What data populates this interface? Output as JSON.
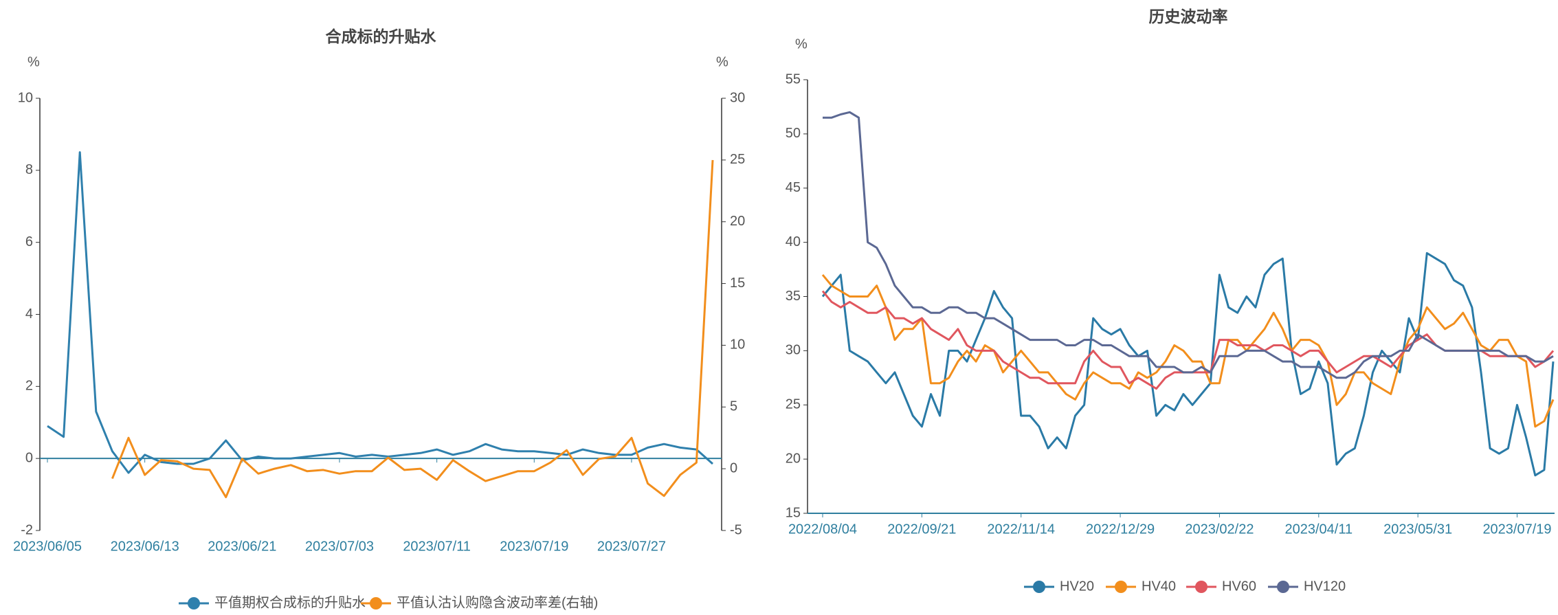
{
  "chart_data": [
    {
      "type": "line",
      "title": "合成标的升贴水",
      "ylabel": "%",
      "y2label": "%",
      "categories": [
        "2023/06/05",
        null,
        null,
        null,
        null,
        null,
        "2023/06/13",
        null,
        null,
        null,
        null,
        null,
        "2023/06/21",
        null,
        null,
        null,
        null,
        null,
        "2023/07/03",
        null,
        null,
        null,
        null,
        null,
        "2023/07/11",
        null,
        null,
        null,
        null,
        null,
        "2023/07/19",
        null,
        null,
        null,
        null,
        null,
        "2023/07/27",
        null,
        null,
        null,
        null,
        null
      ],
      "ylim": [
        -2,
        10
      ],
      "yticks": [
        -2,
        0,
        2,
        4,
        6,
        8,
        10
      ],
      "y2lim": [
        -5,
        30
      ],
      "y2ticks": [
        -5,
        0,
        5,
        10,
        15,
        20,
        25,
        30
      ],
      "series": [
        {
          "name": "平值期权合成标的升贴水",
          "color": "#2f80ad",
          "values": [
            0.9,
            0.6,
            8.5,
            1.3,
            0.2,
            -0.4,
            0.1,
            -0.1,
            -0.15,
            -0.15,
            0.0,
            0.5,
            -0.05,
            0.05,
            0.0,
            0.0,
            0.05,
            0.1,
            0.15,
            0.05,
            0.1,
            0.05,
            0.1,
            0.15,
            0.25,
            0.1,
            0.2,
            0.4,
            0.25,
            0.2,
            0.2,
            0.15,
            0.1,
            0.25,
            0.15,
            0.1,
            0.1,
            0.3,
            0.4,
            0.3,
            0.25,
            -0.15
          ]
        },
        {
          "name": "平值认沽认购隐含波动率差(右轴)",
          "color": "#f28e1c",
          "axis": "y2",
          "values": [
            null,
            null,
            null,
            null,
            -0.8,
            2.5,
            -0.5,
            0.7,
            0.6,
            0.0,
            -0.1,
            -2.3,
            0.8,
            -0.4,
            0.0,
            0.3,
            -0.2,
            -0.1,
            -0.4,
            -0.2,
            -0.2,
            0.9,
            -0.1,
            0.0,
            -0.9,
            0.7,
            -0.2,
            -1.0,
            -0.6,
            -0.2,
            -0.2,
            0.5,
            1.5,
            -0.5,
            0.8,
            1.0,
            2.5,
            -1.2,
            -2.2,
            -0.5,
            0.5,
            25.0
          ]
        }
      ]
    },
    {
      "type": "line",
      "title": "历史波动率",
      "ylabel": "%",
      "categories": [
        "2022/08/04",
        null,
        null,
        null,
        null,
        null,
        null,
        null,
        null,
        null,
        null,
        "2022/09/21",
        null,
        null,
        null,
        null,
        null,
        null,
        null,
        null,
        null,
        null,
        "2022/11/14",
        null,
        null,
        null,
        null,
        null,
        null,
        null,
        null,
        null,
        null,
        "2022/12/29",
        null,
        null,
        null,
        null,
        null,
        null,
        null,
        null,
        null,
        null,
        "2023/02/22",
        null,
        null,
        null,
        null,
        null,
        null,
        null,
        null,
        null,
        null,
        "2023/04/11",
        null,
        null,
        null,
        null,
        null,
        null,
        null,
        null,
        null,
        null,
        "2023/05/31",
        null,
        null,
        null,
        null,
        null,
        null,
        null,
        null,
        null,
        null,
        "2023/07/19",
        null,
        null,
        null,
        null
      ],
      "ylim": [
        15,
        55
      ],
      "yticks": [
        15,
        20,
        25,
        30,
        35,
        40,
        45,
        50,
        55
      ],
      "series": [
        {
          "name": "HV20",
          "color": "#2a7aa6",
          "values": [
            35,
            36,
            37,
            30,
            29.5,
            29,
            28,
            27,
            28,
            26,
            24,
            23,
            26,
            24,
            30,
            30,
            29,
            31,
            33,
            35.5,
            34,
            33,
            24,
            24,
            23,
            21,
            22,
            21,
            24,
            25,
            33,
            32,
            31.5,
            32,
            30.5,
            29.5,
            30,
            24,
            25,
            24.5,
            26,
            25,
            26,
            27,
            37,
            34,
            33.5,
            35,
            34,
            37,
            38,
            38.5,
            30,
            26,
            26.5,
            29,
            27,
            19.5,
            20.5,
            21,
            24,
            28,
            30,
            29,
            28,
            33,
            31,
            39,
            38.5,
            38,
            36.5,
            36,
            34,
            28,
            21,
            20.5,
            21,
            25,
            22,
            18.5,
            19,
            29
          ]
        },
        {
          "name": "HV40",
          "color": "#f28e1c",
          "values": [
            37,
            36,
            35.5,
            35,
            35,
            35,
            36,
            34,
            31,
            32,
            32,
            33,
            27,
            27,
            27.5,
            29,
            30,
            29,
            30.5,
            30,
            28,
            29,
            30,
            29,
            28,
            28,
            27,
            26,
            25.5,
            27,
            28,
            27.5,
            27,
            27,
            26.5,
            28,
            27.5,
            28,
            29,
            30.5,
            30,
            29,
            29,
            27,
            27,
            31,
            31,
            30,
            31,
            32,
            33.5,
            32,
            30,
            31,
            31,
            30.5,
            29,
            25,
            26,
            28,
            28,
            27,
            26.5,
            26,
            29,
            31,
            32,
            34,
            33,
            32,
            32.5,
            33.5,
            32,
            30.5,
            30,
            31,
            31,
            29.5,
            29,
            23,
            23.5,
            25.5
          ]
        },
        {
          "name": "HV60",
          "color": "#e0565e",
          "values": [
            35.5,
            34.5,
            34,
            34.5,
            34,
            33.5,
            33.5,
            34,
            33,
            33,
            32.5,
            33,
            32,
            31.5,
            31,
            32,
            30.5,
            30,
            30,
            30,
            29,
            28.5,
            28,
            27.5,
            27.5,
            27,
            27,
            27,
            27,
            29,
            30,
            29,
            28.5,
            28.5,
            27,
            27.5,
            27,
            26.5,
            27.5,
            28,
            28,
            28,
            28,
            28,
            31,
            31,
            30.5,
            30.5,
            30.5,
            30,
            30.5,
            30.5,
            30,
            29.5,
            30,
            30,
            29,
            28,
            28.5,
            29,
            29.5,
            29.5,
            29,
            28.5,
            29.5,
            30.5,
            31,
            31.5,
            30.5,
            30,
            30,
            30,
            30,
            30,
            29.5,
            29.5,
            29.5,
            29.5,
            29.5,
            28.5,
            29,
            30
          ]
        },
        {
          "name": "HV120",
          "color": "#5b6893",
          "values": [
            51.5,
            51.5,
            51.8,
            52,
            51.5,
            40,
            39.5,
            38,
            36,
            35,
            34,
            34,
            33.5,
            33.5,
            34,
            34,
            33.5,
            33.5,
            33,
            33,
            32.5,
            32,
            31.5,
            31,
            31,
            31,
            31,
            30.5,
            30.5,
            31,
            31,
            30.5,
            30.5,
            30,
            29.5,
            29.5,
            29.5,
            28.5,
            28.5,
            28.5,
            28,
            28,
            28.5,
            28,
            29.5,
            29.5,
            29.5,
            30,
            30,
            30,
            29.5,
            29,
            29,
            28.5,
            28.5,
            28.5,
            28,
            27.5,
            27.5,
            28,
            29,
            29.5,
            29.5,
            29.5,
            30,
            30,
            31.5,
            31,
            30.5,
            30,
            30,
            30,
            30,
            30,
            30,
            30,
            29.5,
            29.5,
            29.5,
            29,
            29,
            29.5
          ]
        }
      ]
    }
  ]
}
